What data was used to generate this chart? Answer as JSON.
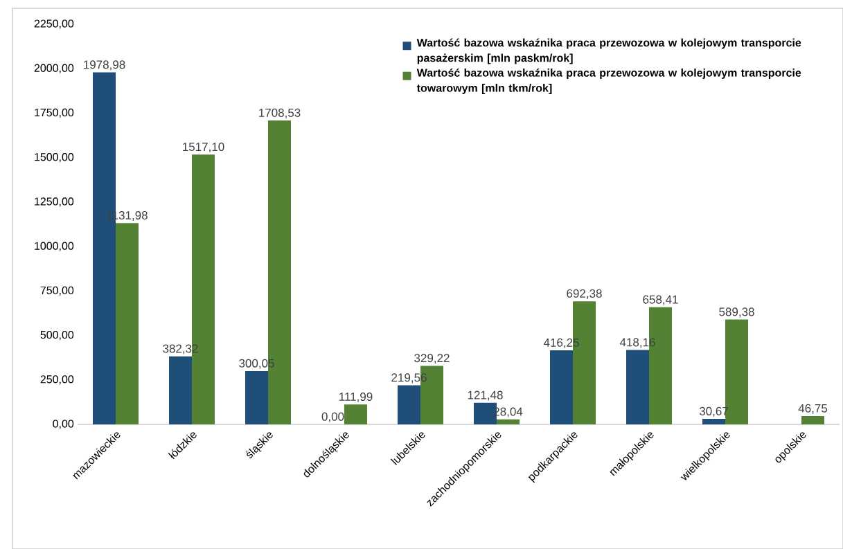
{
  "chart_data": {
    "type": "bar",
    "categories": [
      "mazowieckie",
      "łódzkie",
      "śląskie",
      "dolnośląskie",
      "lubelskie",
      "zachodniopomorskie",
      "podkarpackie",
      "małopolskie",
      "wielkopolskie",
      "opolskie"
    ],
    "series": [
      {
        "name": "Wartość bazowa wskaźnika praca przewozowa w kolejowym transporcie pasażerskim [mln paskm/rok]",
        "color": "#1f4e79",
        "values": [
          1978.98,
          382.32,
          300.05,
          0.0,
          219.56,
          121.48,
          416.25,
          418.16,
          30.67,
          null
        ],
        "value_labels": [
          "1978,98",
          "382,32",
          "300,05",
          "0,00",
          "219,56",
          "121,48",
          "416,25",
          "418,16",
          "30,67",
          null
        ]
      },
      {
        "name": "Wartość bazowa wskaźnika praca przewozowa w kolejowym transporcie towarowym [mln tkm/rok]",
        "color": "#548235",
        "values": [
          1131.98,
          1517.1,
          1708.53,
          111.99,
          329.22,
          28.04,
          692.38,
          658.41,
          589.38,
          46.75
        ],
        "value_labels": [
          "1131,98",
          "1517,10",
          "1708,53",
          "111,99",
          "329,22",
          "28,04",
          "692,38",
          "658,41",
          "589,38",
          "46,75"
        ]
      }
    ],
    "ylim": [
      0,
      2250
    ],
    "yticks": [
      {
        "value": 0,
        "label": "0,00"
      },
      {
        "value": 250,
        "label": "250,00"
      },
      {
        "value": 500,
        "label": "500,00"
      },
      {
        "value": 750,
        "label": "750,00"
      },
      {
        "value": 1000,
        "label": "1000,00"
      },
      {
        "value": 1250,
        "label": "1250,00"
      },
      {
        "value": 1500,
        "label": "1500,00"
      },
      {
        "value": 1750,
        "label": "1750,00"
      },
      {
        "value": 2000,
        "label": "2000,00"
      },
      {
        "value": 2250,
        "label": "2250,00"
      }
    ],
    "legend": "top right",
    "grid": false
  }
}
